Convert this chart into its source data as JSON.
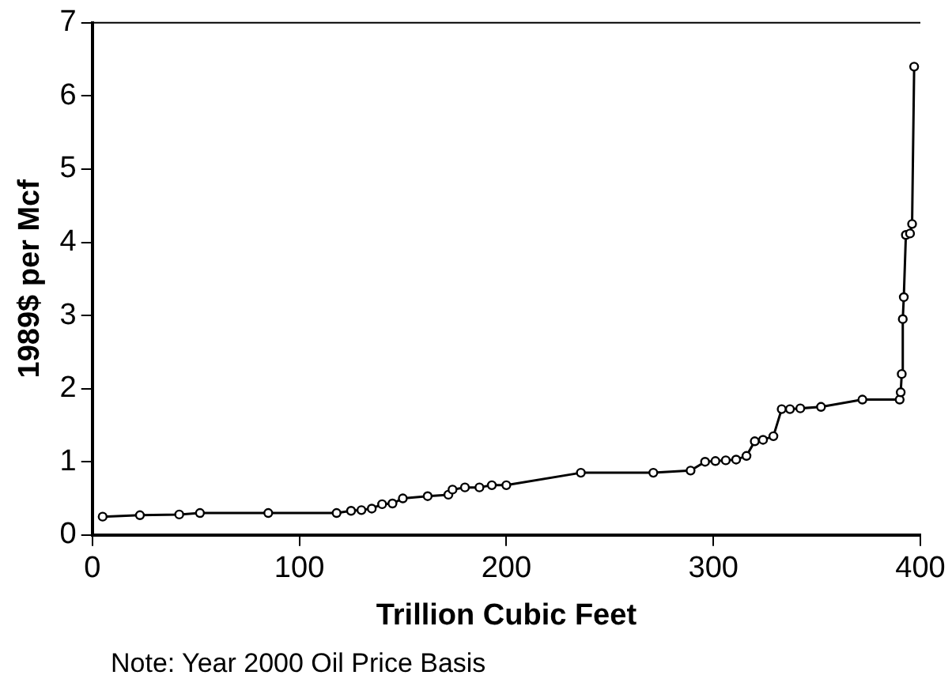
{
  "chart_data": {
    "type": "line",
    "xlabel": "Trillion Cubic Feet",
    "ylabel": "1989$ per Mcf",
    "annotations": [
      "Note: Year 2000 Oil Price Basis"
    ],
    "x": [
      5,
      23,
      42,
      52,
      85,
      118,
      125,
      130,
      135,
      140,
      145,
      150,
      162,
      172,
      174,
      180,
      187,
      193,
      200,
      236,
      271,
      289,
      296,
      301,
      306,
      311,
      316,
      320,
      324,
      329,
      333,
      337,
      342,
      352,
      372,
      390,
      390.5,
      391,
      391.5,
      392,
      393,
      395,
      396,
      397
    ],
    "series": [
      {
        "color": "#000000",
        "values": [
          0.25,
          0.27,
          0.28,
          0.3,
          0.3,
          0.3,
          0.33,
          0.34,
          0.36,
          0.42,
          0.43,
          0.5,
          0.53,
          0.55,
          0.62,
          0.65,
          0.65,
          0.68,
          0.68,
          0.85,
          0.85,
          0.88,
          1.0,
          1.01,
          1.02,
          1.03,
          1.08,
          1.28,
          1.3,
          1.35,
          1.72,
          1.72,
          1.73,
          1.75,
          1.85,
          1.85,
          1.95,
          2.2,
          2.95,
          3.25,
          4.1,
          4.12,
          4.25,
          6.4
        ]
      }
    ],
    "xlim": [
      0,
      400
    ],
    "xticks": [
      0,
      100,
      200,
      300,
      400
    ],
    "ylim": [
      0,
      7
    ],
    "yticks": [
      0,
      1,
      2,
      3,
      4,
      5,
      6,
      7
    ],
    "grid": false,
    "legend": false,
    "marker": "circle",
    "line_style": "solid"
  }
}
